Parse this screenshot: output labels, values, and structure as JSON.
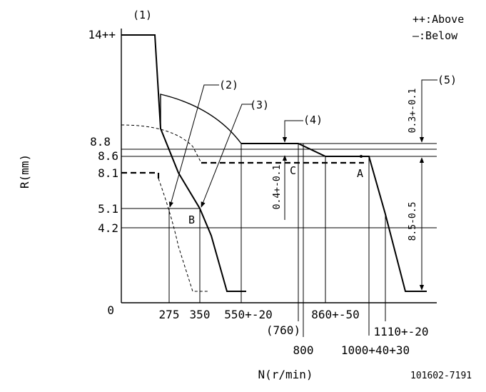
{
  "legend": {
    "above": "++:Above",
    "below": "—:Below"
  },
  "axes": {
    "y_label": "R(mm)",
    "x_label": "N(r/min)",
    "origin": "0"
  },
  "y_ticks": [
    "14++",
    "8.8",
    "8.6",
    "8.1",
    "5.1",
    "4.2"
  ],
  "x_ticks": [
    "275",
    "350",
    "550+-20",
    "(760)",
    "800",
    "860+-50",
    "1000+40+30",
    "1110+-20"
  ],
  "callouts": [
    "(1)",
    "(2)",
    "(3)",
    "(4)",
    "(5)"
  ],
  "points": [
    "A",
    "B",
    "C"
  ],
  "dimensions": {
    "top_gap": "0.3+-0.1",
    "mid_gap": "0.4+-0.1",
    "tall_gap": "8.5-0.5"
  },
  "code": "101602-7191"
}
